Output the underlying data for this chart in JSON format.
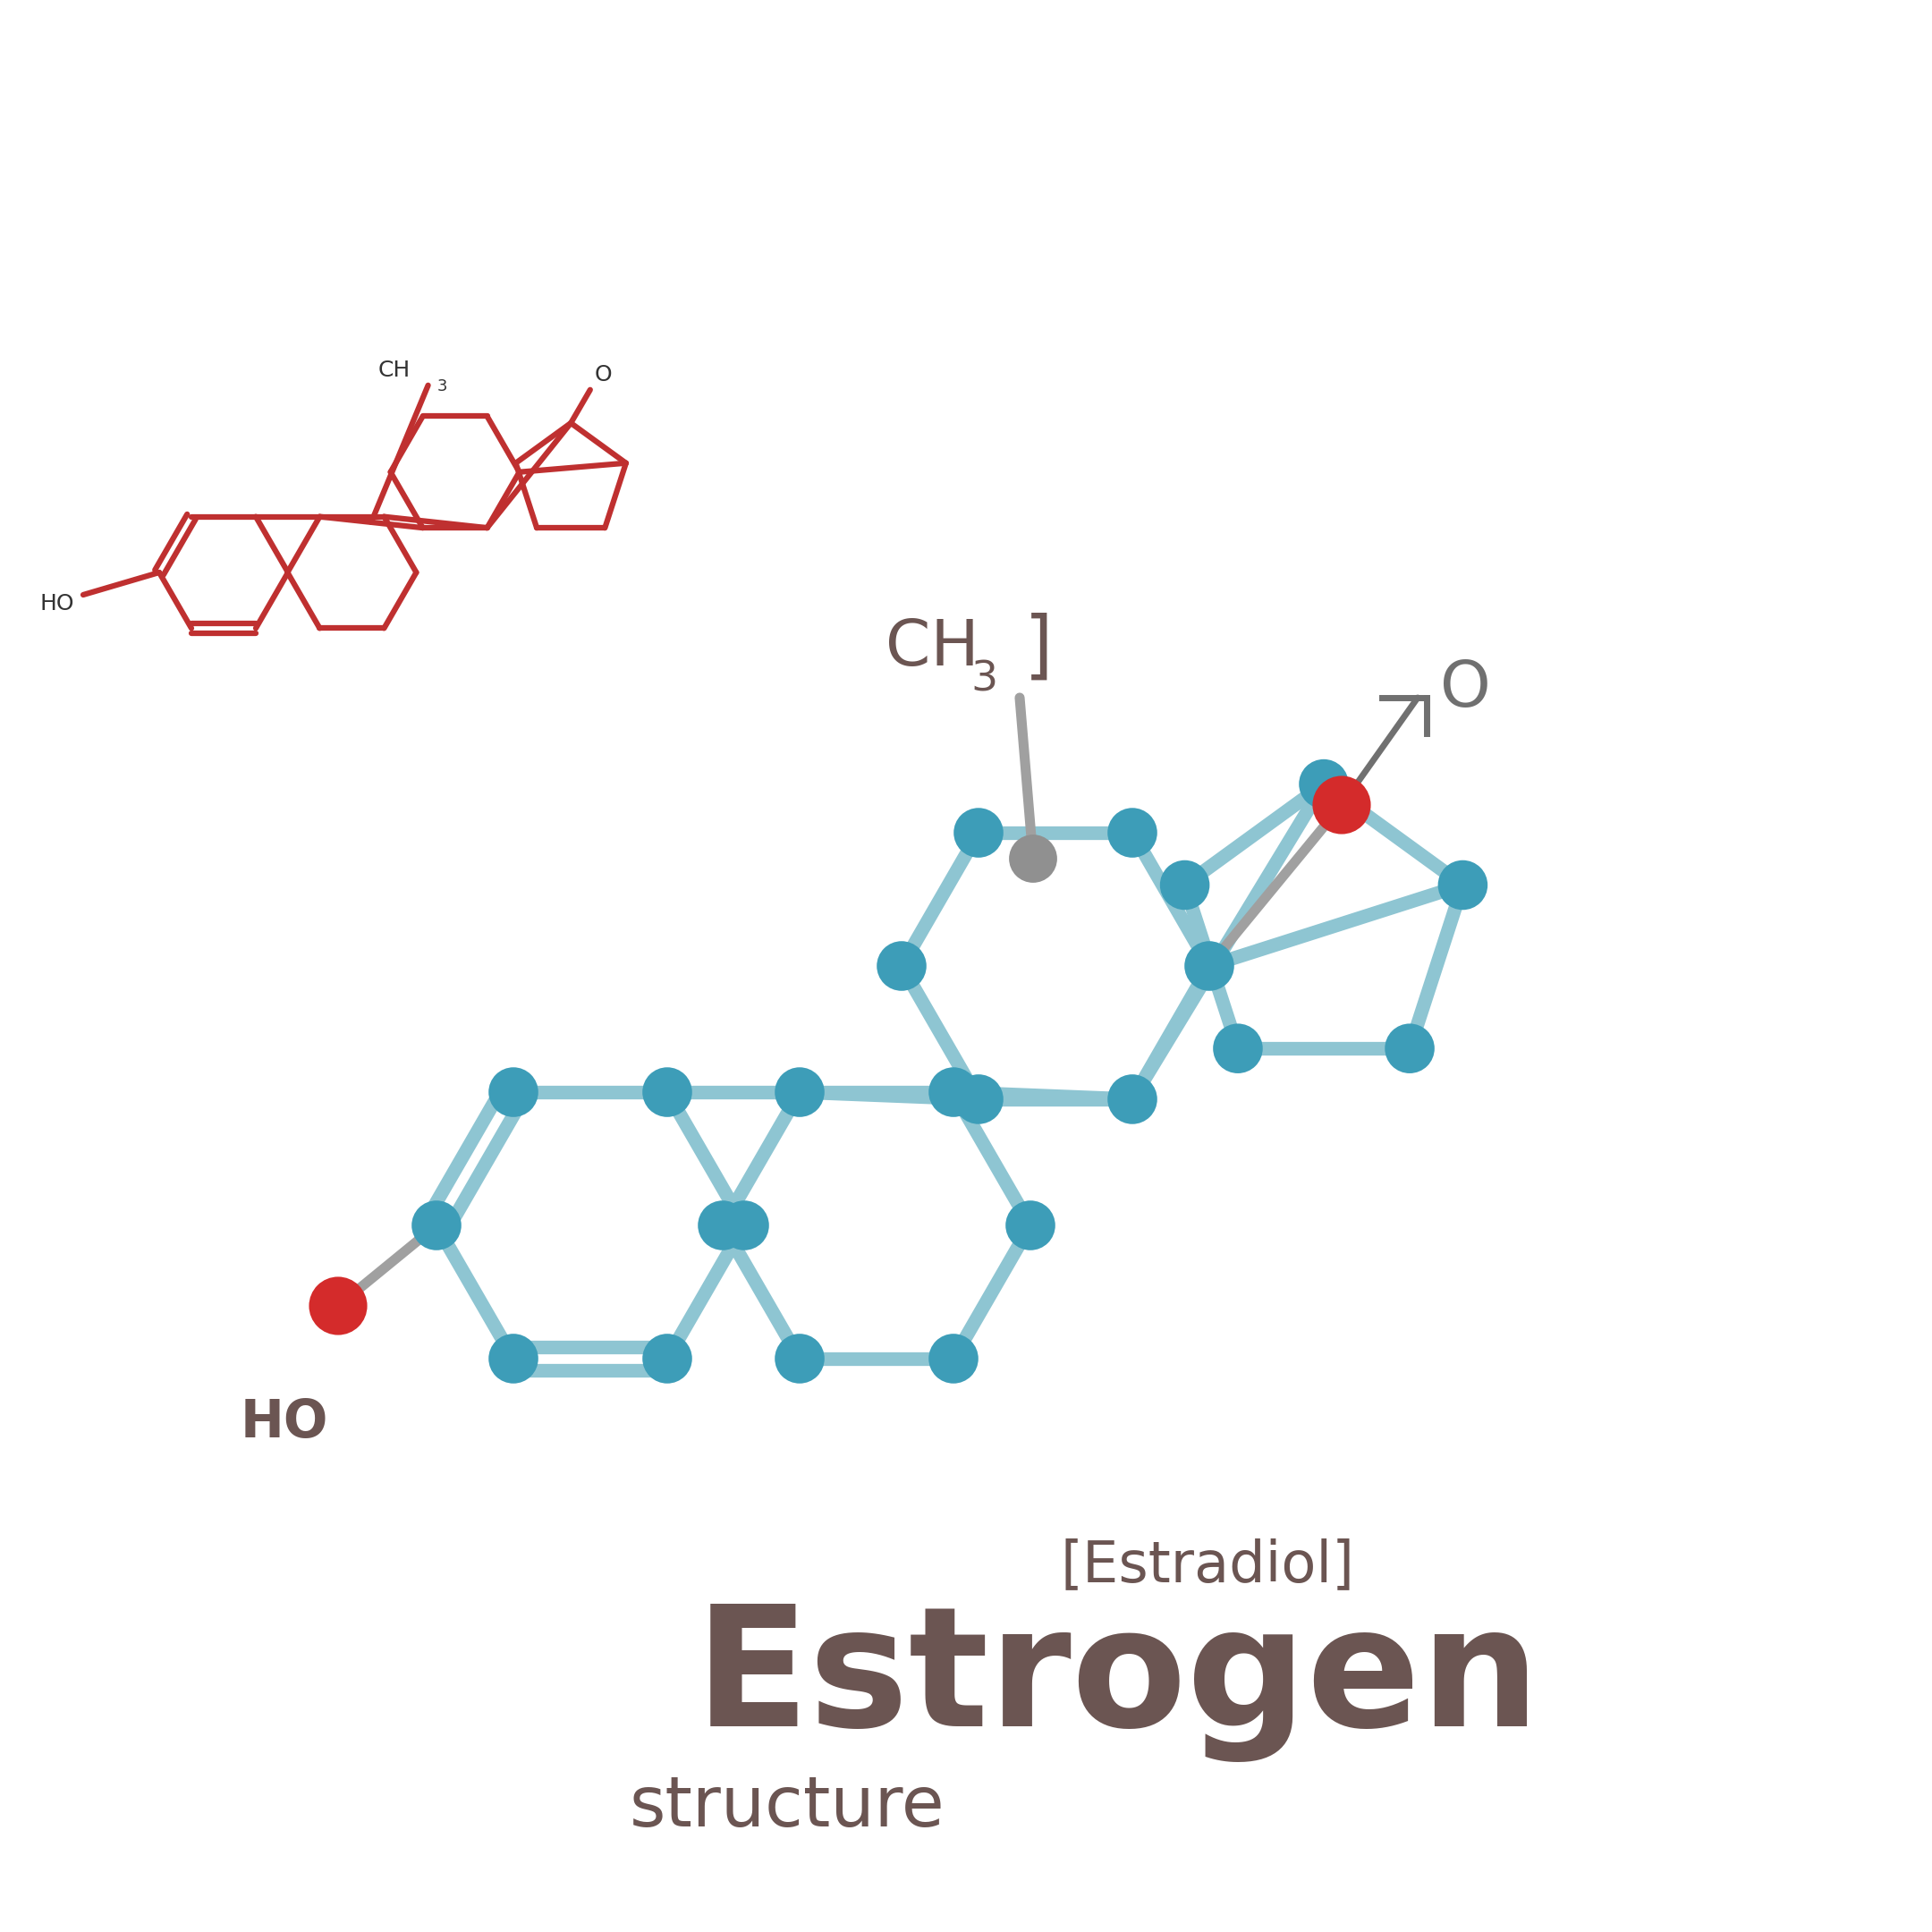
{
  "bg_color": "#ffffff",
  "text_color": "#6b5552",
  "bond_color_main": "#8ec5d2",
  "node_color_main": "#3d9db8",
  "node_color_OH": "#d42b2b",
  "node_color_CH3": "#909090",
  "bond_color_gray": "#a0a0a0",
  "bond_color_red": "#bf3030",
  "label_color_gray": "#707070",
  "title_main": "Estrogen",
  "title_sub": "[Estradiol]",
  "title_struct": "structure"
}
